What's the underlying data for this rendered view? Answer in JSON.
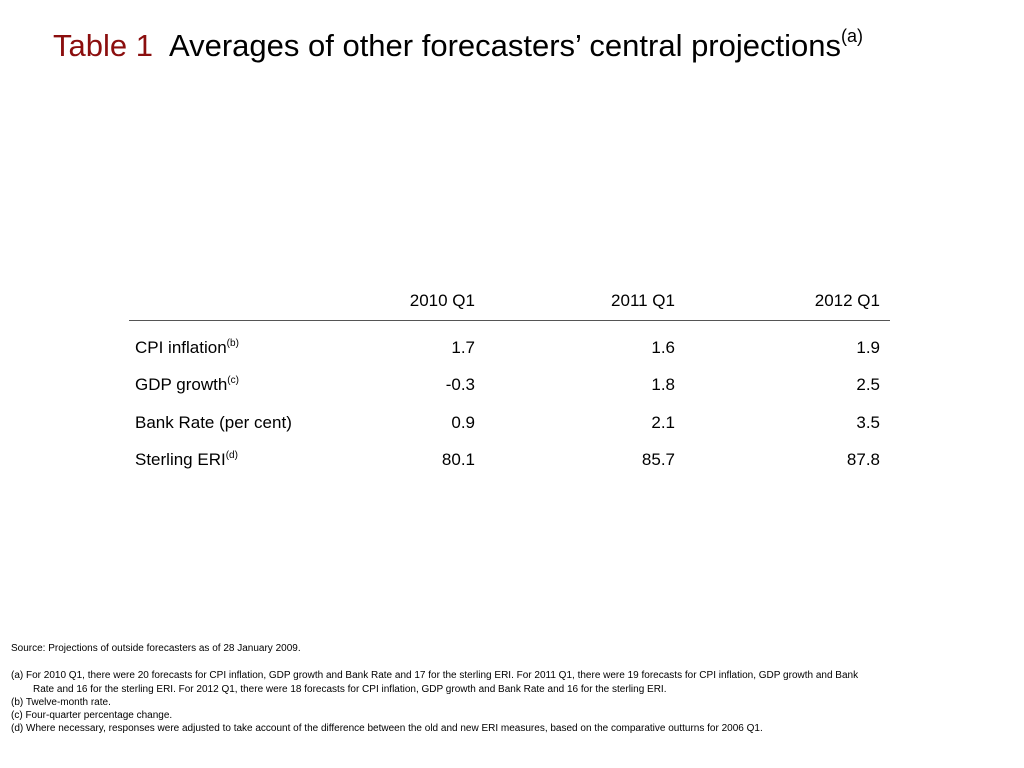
{
  "title": {
    "label": "Table 1",
    "text": "Averages of other forecasters’ central projections",
    "superscript": "(a)",
    "accent_color": "#8b0e0e"
  },
  "table": {
    "columns": [
      "2010 Q1",
      "2011 Q1",
      "2012 Q1"
    ],
    "rows": [
      {
        "label": "CPI inflation",
        "sup": "(b)",
        "values": [
          "1.7",
          "1.6",
          "1.9"
        ]
      },
      {
        "label": "GDP growth",
        "sup": "(c)",
        "values": [
          "-0.3",
          "1.8",
          "2.5"
        ]
      },
      {
        "label": "Bank Rate (per cent)",
        "sup": "",
        "values": [
          "0.9",
          "2.1",
          "3.5"
        ]
      },
      {
        "label": "Sterling ERI",
        "sup": "(d)",
        "values": [
          "80.1",
          "85.7",
          "87.8"
        ]
      }
    ]
  },
  "notes": {
    "source": "Source:  Projections of outside forecasters as of 28 January 2009.",
    "a_line1": "(a)  For 2010 Q1, there were 20 forecasts for CPI inflation, GDP growth and Bank Rate and 17 for the sterling ERI.  For 2011 Q1, there were 19 forecasts for CPI inflation, GDP growth and Bank",
    "a_line2": "Rate and 16 for the sterling ERI.  For 2012 Q1, there were 18 forecasts for CPI inflation, GDP growth and Bank Rate and 16 for the sterling ERI.",
    "b": "(b)  Twelve-month rate.",
    "c": "(c)  Four-quarter percentage change.",
    "d": "(d)  Where necessary, responses were adjusted to take account of the difference between the old and new ERI measures, based on the comparative outturns for 2006 Q1."
  }
}
